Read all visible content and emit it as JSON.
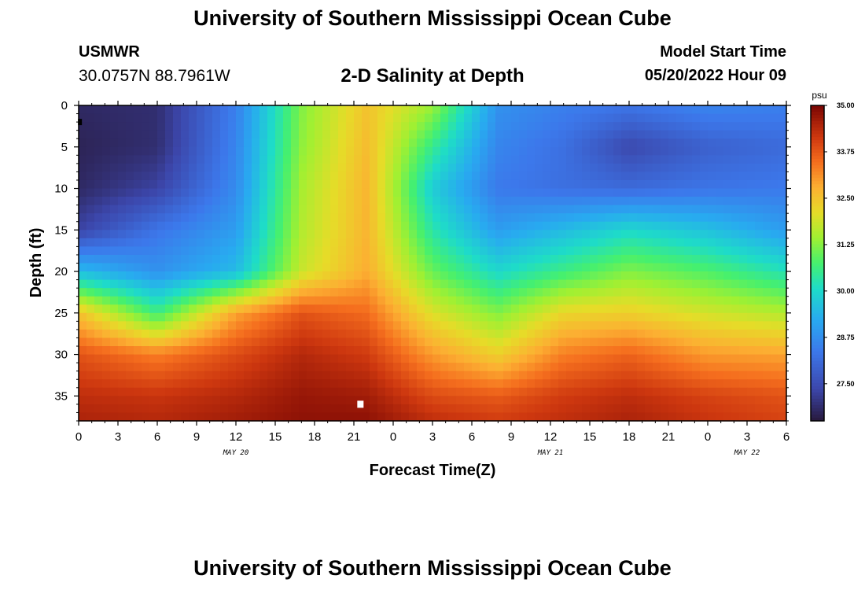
{
  "header": {
    "title": "University of Southern Mississippi Ocean Cube",
    "station": "USMWR",
    "coords": "30.0757N  88.7961W",
    "subtitle": "2-D Salinity at Depth",
    "model_start_label": "Model Start Time",
    "model_start_value": "05/20/2022 Hour 09"
  },
  "footer": {
    "title": "University of Southern Mississippi Ocean Cube"
  },
  "chart_data": {
    "type": "heatmap",
    "title": "2-D Salinity at Depth",
    "xlabel": "Forecast Time(Z)",
    "ylabel": "Depth (ft)",
    "x_range_hours": [
      0,
      54
    ],
    "ylim": [
      0,
      38
    ],
    "x_ticks": [
      "0",
      "3",
      "6",
      "9",
      "12",
      "15",
      "18",
      "21",
      "0",
      "3",
      "6",
      "9",
      "12",
      "15",
      "18",
      "21",
      "0",
      "3",
      "6"
    ],
    "y_ticks": [
      "0",
      "5",
      "10",
      "15",
      "20",
      "25",
      "30",
      "35"
    ],
    "day_labels": [
      {
        "text": "MAY 20",
        "hour": 12
      },
      {
        "text": "MAY 21",
        "hour": 36
      },
      {
        "text": "MAY 22",
        "hour": 51
      }
    ],
    "colorbar": {
      "unit": "psu",
      "min": 26.5,
      "max": 35.0,
      "ticks": [
        "35.00",
        "33.75",
        "32.50",
        "31.25",
        "30.00",
        "28.75",
        "27.50"
      ],
      "tick_values": [
        35.0,
        33.75,
        32.5,
        31.25,
        30.0,
        28.75,
        27.5
      ]
    },
    "grid": false,
    "time_steps_hours": [
      0,
      6,
      12,
      17,
      22,
      27,
      32,
      37,
      42,
      48,
      54
    ],
    "depth_levels_ft": [
      0,
      5,
      10,
      15,
      20,
      25,
      30,
      35,
      38
    ],
    "salinity_psu": [
      [
        26.8,
        26.9,
        28.5,
        31.2,
        32.5,
        31.4,
        28.8,
        28.5,
        28.3,
        28.6,
        28.5
      ],
      [
        26.7,
        26.9,
        28.6,
        31.3,
        32.6,
        30.5,
        28.6,
        28.2,
        27.4,
        27.9,
        28.1
      ],
      [
        26.8,
        27.3,
        28.7,
        31.5,
        32.7,
        29.8,
        28.4,
        28.2,
        28.1,
        28.3,
        28.4
      ],
      [
        27.3,
        28.3,
        29.0,
        31.6,
        32.7,
        30.3,
        29.0,
        29.5,
        30.0,
        29.6,
        29.0
      ],
      [
        29.5,
        28.8,
        29.5,
        31.8,
        32.8,
        31.0,
        30.0,
        30.6,
        31.2,
        30.8,
        30.2
      ],
      [
        32.5,
        30.6,
        32.9,
        33.8,
        33.5,
        32.0,
        31.2,
        32.2,
        32.3,
        31.9,
        31.6
      ],
      [
        33.8,
        33.3,
        33.9,
        34.4,
        34.1,
        33.0,
        32.3,
        33.3,
        33.6,
        33.0,
        32.9
      ],
      [
        34.3,
        34.2,
        34.4,
        34.7,
        34.6,
        33.9,
        33.7,
        34.1,
        34.3,
        34.0,
        33.8
      ],
      [
        34.5,
        34.4,
        34.6,
        34.8,
        34.8,
        34.3,
        34.1,
        34.3,
        34.5,
        34.2,
        34.0
      ]
    ],
    "markers": [
      {
        "hour": 21.5,
        "depth_ft": 36,
        "color": "#ffffff"
      },
      {
        "hour": 0.1,
        "depth_ft": 2,
        "color": "#000000"
      }
    ]
  }
}
